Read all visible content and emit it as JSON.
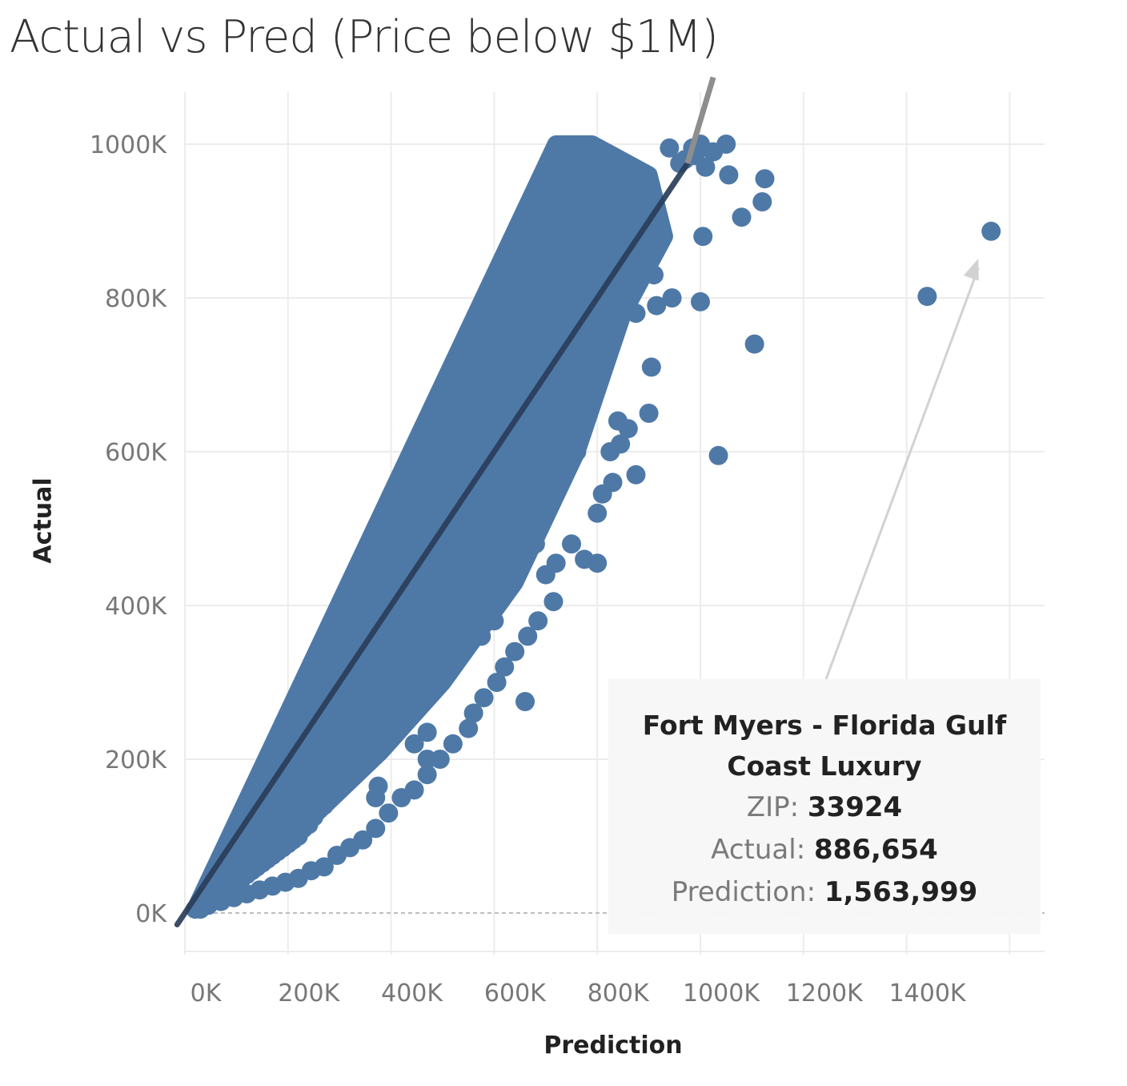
{
  "chart_data": {
    "type": "scatter",
    "title": "Actual vs Pred (Price below $1M)",
    "xlabel": "Prediction",
    "ylabel": "Actual",
    "xlim": [
      0,
      1500000
    ],
    "ylim": [
      -20000,
      1080000
    ],
    "x_ticks": [
      0,
      200000,
      400000,
      600000,
      800000,
      1000000,
      1200000,
      1400000
    ],
    "x_tick_labels": [
      "0K",
      "200K",
      "400K",
      "600K",
      "800K",
      "1000K",
      "1200K",
      "1400K"
    ],
    "y_ticks": [
      0,
      200000,
      400000,
      600000,
      800000,
      1000000
    ],
    "y_tick_labels": [
      "0K",
      "200K",
      "400K",
      "600K",
      "800K",
      "1000K"
    ],
    "grid": true,
    "reference_line": "y = x",
    "point_color": "#4e79a7",
    "reference_line_color": "#2b3e5a",
    "series": [
      {
        "x": [
          1563999,
          1440000,
          1105000,
          1035000,
          1125000,
          1120000,
          1050000,
          1025000,
          1010000,
          1080000,
          1055000,
          985000,
          1000000,
          970000,
          960000,
          990000,
          940000,
          1005000,
          1000000,
          945000,
          915000,
          910000,
          905000,
          875000,
          900000,
          860000,
          840000,
          845000,
          825000,
          810000,
          800000,
          715000,
          720000,
          875000,
          765000,
          740000,
          860000,
          830000,
          825000,
          860000,
          800000,
          785000,
          760000,
          740000,
          780000,
          660000,
          750000,
          680000,
          600000,
          575000,
          560000,
          520000,
          470000,
          470000,
          375000,
          370000,
          290000,
          445000,
          410000,
          330000,
          300000,
          700000,
          775000,
          800000,
          830000,
          760000,
          685000,
          665000,
          640000,
          620000,
          605000,
          580000,
          560000,
          550000,
          520000,
          495000,
          470000,
          445000,
          420000,
          395000,
          370000,
          345000,
          320000,
          295000,
          270000,
          245000,
          220000,
          195000,
          170000,
          145000,
          120000,
          95000,
          70000,
          45000,
          20000,
          550000,
          540000,
          530000,
          520000,
          510000,
          500000,
          490000,
          480000,
          470000,
          460000,
          450000,
          440000,
          430000,
          420000,
          410000,
          400000,
          390000,
          380000,
          370000,
          360000,
          350000,
          340000,
          330000,
          320000,
          310000,
          300000,
          290000,
          280000,
          270000,
          260000,
          250000,
          240000,
          230000,
          220000,
          210000,
          200000,
          190000,
          180000,
          170000,
          160000,
          150000,
          140000,
          130000,
          120000,
          110000,
          100000,
          90000,
          80000,
          70000,
          60000,
          50000,
          40000,
          30000
        ],
        "y": [
          886654,
          802000,
          740000,
          595000,
          955000,
          925000,
          1000000,
          990000,
          970000,
          905000,
          960000,
          995000,
          1000000,
          980000,
          975000,
          985000,
          995000,
          880000,
          795000,
          800000,
          790000,
          830000,
          710000,
          570000,
          650000,
          630000,
          640000,
          610000,
          600000,
          545000,
          455000,
          405000,
          455000,
          780000,
          760000,
          700000,
          940000,
          945000,
          900000,
          860000,
          850000,
          830000,
          810000,
          790000,
          770000,
          275000,
          480000,
          480000,
          380000,
          360000,
          395000,
          420000,
          235000,
          200000,
          165000,
          150000,
          160000,
          220000,
          250000,
          300000,
          330000,
          440000,
          460000,
          520000,
          560000,
          600000,
          380000,
          360000,
          340000,
          320000,
          300000,
          280000,
          260000,
          240000,
          220000,
          200000,
          180000,
          160000,
          150000,
          130000,
          110000,
          95000,
          85000,
          75000,
          60000,
          55000,
          45000,
          40000,
          35000,
          30000,
          25000,
          20000,
          15000,
          10000,
          5000,
          590000,
          560000,
          540000,
          500000,
          480000,
          460000,
          430000,
          410000,
          400000,
          380000,
          360000,
          340000,
          330000,
          310000,
          290000,
          280000,
          270000,
          260000,
          240000,
          230000,
          220000,
          210000,
          200000,
          190000,
          180000,
          170000,
          160000,
          150000,
          140000,
          135000,
          125000,
          115000,
          110000,
          100000,
          95000,
          90000,
          85000,
          80000,
          75000,
          70000,
          65000,
          60000,
          55000,
          50000,
          45000,
          40000,
          35000,
          30000,
          25000,
          20000,
          15000,
          10000,
          5000
        ]
      }
    ],
    "dense_band": {
      "lower_slope": 0.72,
      "upper_slope": 1.4,
      "x_max_lower": 930000,
      "x_max_upper": 720000
    },
    "highlight": {
      "x": 1563999,
      "y": 886654
    }
  },
  "tooltip": {
    "name": "Fort Myers - Florida Gulf Coast Luxury",
    "zip_label": "ZIP:",
    "zip_value": "33924",
    "actual_label": "Actual:",
    "actual_value": "886,654",
    "prediction_label": "Prediction:",
    "prediction_value": "1,563,999"
  }
}
